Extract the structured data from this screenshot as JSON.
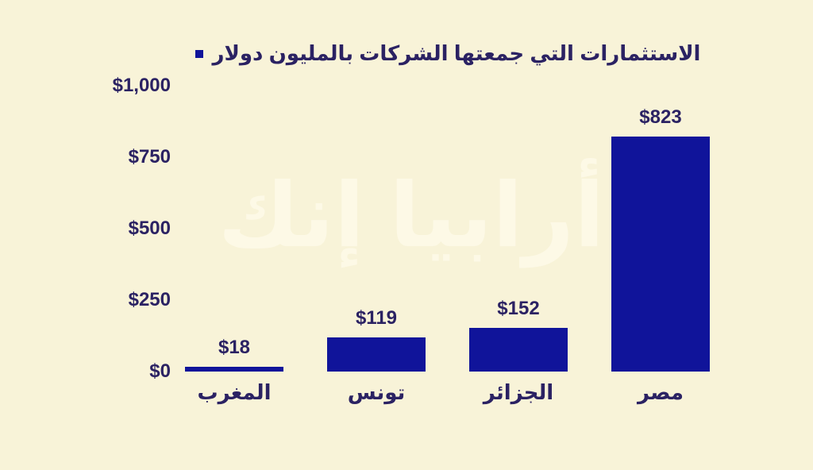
{
  "page": {
    "background_color": "#f8f3d8",
    "text_color": "#2b2263"
  },
  "header": {
    "title": "الاستثمارات التي جمعتها الشركات بالمليون دولار",
    "legend_marker_color": "#10149a"
  },
  "watermark": {
    "text": "أرابيا إنك"
  },
  "chart_data": {
    "type": "bar",
    "title": "الاستثمارات التي جمعتها الشركات بالمليون دولار",
    "categories": [
      "المغرب",
      "تونس",
      "الجزائر",
      "مصر"
    ],
    "values": [
      18,
      119,
      152,
      823
    ],
    "value_labels": [
      "$18",
      "$119",
      "$152",
      "$823"
    ],
    "y_ticks": [
      {
        "label": "$0",
        "value": 0
      },
      {
        "label": "$250",
        "value": 250
      },
      {
        "label": "$500",
        "value": 500
      },
      {
        "label": "$750",
        "value": 750
      },
      {
        "label": "$1,000",
        "value": 1000
      }
    ],
    "ylim": [
      0,
      1000
    ],
    "grid": false,
    "legend_position": "top",
    "rtl": true,
    "bar_color": "#10149a"
  }
}
